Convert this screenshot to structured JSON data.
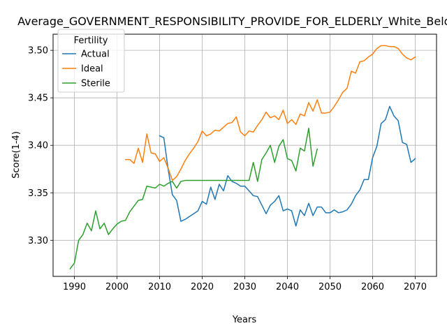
{
  "chart_data": {
    "type": "line",
    "title": "Average_GOVERNMENT_RESPONSIBILITY_PROVIDE_FOR_ELDERLY_White_Below_AA",
    "xlabel": "Years",
    "ylabel": "Score(1-4)",
    "xlim": [
      1985,
      2075
    ],
    "ylim": [
      3.262,
      3.517
    ],
    "xticks": [
      1990,
      2000,
      2010,
      2020,
      2030,
      2040,
      2050,
      2060,
      2070
    ],
    "yticks": [
      3.3,
      3.35,
      3.4,
      3.45,
      3.5
    ],
    "ytick_labels": [
      "3.30",
      "3.35",
      "3.40",
      "3.45",
      "3.50"
    ],
    "grid": true,
    "legend": {
      "title": "Fertility",
      "position": "top-left"
    },
    "series": [
      {
        "name": "Actual",
        "color": "#1f77b4",
        "x": [
          2010,
          2011,
          2012,
          2013,
          2014,
          2015,
          2016,
          2017,
          2018,
          2019,
          2020,
          2021,
          2022,
          2023,
          2024,
          2025,
          2026,
          2027,
          2028,
          2029,
          2030,
          2031,
          2032,
          2033,
          2034,
          2035,
          2036,
          2037,
          2038,
          2039,
          2040,
          2041,
          2042,
          2043,
          2044,
          2045,
          2046,
          2047,
          2048,
          2049,
          2050,
          2051,
          2052,
          2053,
          2054,
          2055,
          2056,
          2057,
          2058,
          2059,
          2060,
          2061,
          2062,
          2063,
          2064,
          2065,
          2066,
          2067,
          2068,
          2069,
          2070
        ],
        "values": [
          3.41,
          3.408,
          3.375,
          3.348,
          3.342,
          3.32,
          3.322,
          3.325,
          3.328,
          3.331,
          3.341,
          3.338,
          3.356,
          3.343,
          3.359,
          3.352,
          3.368,
          3.362,
          3.36,
          3.357,
          3.357,
          3.352,
          3.347,
          3.346,
          3.337,
          3.328,
          3.337,
          3.341,
          3.347,
          3.331,
          3.333,
          3.331,
          3.315,
          3.332,
          3.326,
          3.339,
          3.326,
          3.335,
          3.335,
          3.329,
          3.329,
          3.332,
          3.329,
          3.33,
          3.332,
          3.338,
          3.347,
          3.353,
          3.364,
          3.364,
          3.387,
          3.399,
          3.423,
          3.427,
          3.441,
          3.431,
          3.426,
          3.403,
          3.401,
          3.382,
          3.386
        ]
      },
      {
        "name": "Ideal",
        "color": "#ff7f0e",
        "x": [
          2002,
          2003,
          2004,
          2005,
          2006,
          2007,
          2008,
          2009,
          2010,
          2011,
          2012,
          2013,
          2014,
          2015,
          2016,
          2017,
          2018,
          2019,
          2020,
          2021,
          2022,
          2023,
          2024,
          2025,
          2026,
          2027,
          2028,
          2029,
          2030,
          2031,
          2032,
          2033,
          2034,
          2035,
          2036,
          2037,
          2038,
          2039,
          2040,
          2041,
          2042,
          2043,
          2044,
          2045,
          2046,
          2047,
          2048,
          2049,
          2050,
          2051,
          2052,
          2053,
          2054,
          2055,
          2056,
          2057,
          2058,
          2059,
          2060,
          2061,
          2062,
          2063,
          2064,
          2065,
          2066,
          2067,
          2068,
          2069,
          2070
        ],
        "values": [
          3.385,
          3.385,
          3.381,
          3.397,
          3.382,
          3.412,
          3.392,
          3.391,
          3.383,
          3.387,
          3.376,
          3.363,
          3.367,
          3.375,
          3.384,
          3.391,
          3.397,
          3.404,
          3.415,
          3.41,
          3.412,
          3.416,
          3.415,
          3.419,
          3.423,
          3.424,
          3.43,
          3.414,
          3.41,
          3.415,
          3.414,
          3.421,
          3.427,
          3.435,
          3.429,
          3.431,
          3.427,
          3.437,
          3.423,
          3.427,
          3.422,
          3.433,
          3.431,
          3.445,
          3.436,
          3.448,
          3.434,
          3.434,
          3.435,
          3.441,
          3.448,
          3.456,
          3.46,
          3.478,
          3.476,
          3.488,
          3.489,
          3.493,
          3.496,
          3.502,
          3.505,
          3.505,
          3.504,
          3.504,
          3.502,
          3.496,
          3.492,
          3.49,
          3.493
        ]
      },
      {
        "name": "Sterile",
        "color": "#2ca02c",
        "x": [
          1989,
          1990,
          1991,
          1992,
          1993,
          1994,
          1995,
          1996,
          1997,
          1998,
          1999,
          2000,
          2001,
          2002,
          2003,
          2004,
          2005,
          2006,
          2007,
          2008,
          2009,
          2010,
          2011,
          2012,
          2013,
          2014,
          2015,
          2016,
          2017,
          2018,
          2019,
          2020,
          2021,
          2022,
          2023,
          2024,
          2025,
          2026,
          2027,
          2028,
          2029,
          2030,
          2031,
          2032,
          2033,
          2034,
          2035,
          2036,
          2037,
          2038,
          2039,
          2040,
          2041,
          2042,
          2043,
          2044,
          2045,
          2046,
          2047
        ],
        "values": [
          3.27,
          3.276,
          3.3,
          3.306,
          3.318,
          3.31,
          3.331,
          3.312,
          3.318,
          3.306,
          3.312,
          3.317,
          3.32,
          3.321,
          3.33,
          3.336,
          3.342,
          3.343,
          3.357,
          3.356,
          3.355,
          3.359,
          3.357,
          3.36,
          3.362,
          3.355,
          3.362,
          3.363,
          3.363,
          3.363,
          3.363,
          3.363,
          3.363,
          3.363,
          3.363,
          3.363,
          3.363,
          3.363,
          3.363,
          3.363,
          3.363,
          3.363,
          3.363,
          3.382,
          3.362,
          3.385,
          3.392,
          3.4,
          3.382,
          3.399,
          3.406,
          3.386,
          3.384,
          3.373,
          3.397,
          3.394,
          3.418,
          3.378,
          3.396
        ]
      }
    ]
  }
}
